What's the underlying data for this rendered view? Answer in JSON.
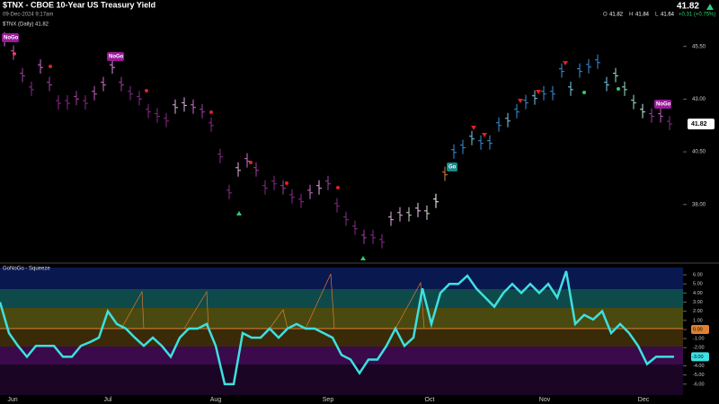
{
  "header": {
    "title": "$TNX - CBOE 10-Year US Treasury Yield",
    "date": "09-Dec-2024 9:17am",
    "last": "41.82",
    "open_label": "O",
    "open": "41.82",
    "high_label": "H",
    "high": "41.84",
    "low_label": "L",
    "low": "41.64",
    "change": "+0.31 (+0.75%)"
  },
  "chart_data": [
    {
      "type": "ohlc",
      "title": "$TNX (Daily) 41.82",
      "values": [
        45.8,
        45.16,
        44.1,
        43.45,
        44.5,
        43.67,
        42.8,
        42.8,
        43.0,
        42.8,
        43.24,
        43.67,
        44.5,
        43.67,
        43.24,
        43.0,
        42.39,
        42.18,
        41.96,
        42.6,
        42.7,
        42.6,
        42.39,
        41.75,
        40.26,
        38.55,
        39.62,
        40.05,
        39.62,
        38.77,
        38.98,
        38.77,
        38.34,
        38.13,
        38.55,
        38.77,
        38.98,
        37.92,
        37.28,
        36.85,
        36.42,
        36.42,
        36.21,
        37.28,
        37.49,
        37.49,
        37.7,
        37.57,
        38.13,
        39.41,
        40.47,
        40.69,
        41.11,
        40.9,
        40.9,
        41.75,
        41.96,
        42.39,
        42.82,
        43.03,
        43.24,
        43.24,
        44.31,
        43.45,
        44.31,
        44.52,
        44.73,
        43.67,
        44.1,
        43.45,
        42.82,
        42.39,
        42.18,
        42.18,
        41.82
      ],
      "bar_colors": [
        "#d070d0",
        "#c060c0",
        "#a040a0",
        "#8a2a8a",
        "#d070d0",
        "#a040a0",
        "#8a2a8a",
        "#8a2a8a",
        "#a040a0",
        "#8a2a8a",
        "#c060c0",
        "#d070d0",
        "#e090e0",
        "#a040a0",
        "#8a2a8a",
        "#8a2a8a",
        "#8a2a8a",
        "#8a2a8a",
        "#8a2a8a",
        "#e0b0e0",
        "#e0b0e0",
        "#d070d0",
        "#a040a0",
        "#8a2a8a",
        "#8a2a8a",
        "#8a2a8a",
        "#e0b0e0",
        "#d070d0",
        "#a040a0",
        "#8a2a8a",
        "#8a2a8a",
        "#a040a0",
        "#8a2a8a",
        "#8a2a8a",
        "#d070d0",
        "#e0b0e0",
        "#a040a0",
        "#8a2a8a",
        "#8a2a8a",
        "#8a2a8a",
        "#a040a0",
        "#8a2a8a",
        "#8a2a8a",
        "#e0b0e0",
        "#e0b0e0",
        "#d0d0d0",
        "#f0d0f0",
        "#e0e0e0",
        "#ffffff",
        "#e08030",
        "#3a8fd8",
        "#3a8fd8",
        "#7ecbe8",
        "#3a8fd8",
        "#3a8fd8",
        "#3a8fd8",
        "#7ecbe8",
        "#3a8fd8",
        "#3a8fd8",
        "#7ecbe8",
        "#3a8fd8",
        "#3a8fd8",
        "#3a8fd8",
        "#7ecbe8",
        "#3a8fd8",
        "#3a8fd8",
        "#3a8fd8",
        "#7ecbe8",
        "#a0e0d0",
        "#a0e0d0",
        "#a0e0d0",
        "#c0f0e0",
        "#a040a0",
        "#c060c0",
        "#8a2a8a"
      ],
      "ylim": [
        35.35,
        46.85
      ],
      "yticks": [
        {
          "value": 38,
          "label": "38.00"
        },
        {
          "value": 40.5,
          "label": "40.50"
        },
        {
          "value": 43,
          "label": "43.00"
        },
        {
          "value": 45.5,
          "label": "45.50"
        }
      ],
      "annotations": [
        "NoGo",
        "NoGo",
        "Go",
        "NoGo"
      ]
    },
    {
      "type": "line",
      "title": "GoNoGo - Squeeze",
      "color": "#3ee0e0",
      "values": [
        3.0,
        -0.4,
        -1.8,
        -3.0,
        -1.8,
        -1.8,
        -1.8,
        -3.0,
        -3.0,
        -1.8,
        -1.4,
        -0.9,
        2.0,
        0.6,
        0.1,
        -0.9,
        -1.8,
        -0.9,
        -1.8,
        -3.0,
        -0.9,
        0.1,
        0.1,
        0.6,
        -1.8,
        -6.0,
        -6.0,
        -0.4,
        -0.9,
        -0.9,
        0.1,
        -0.9,
        0.1,
        0.6,
        0.1,
        0.1,
        -0.4,
        -0.9,
        -2.8,
        -3.3,
        -4.8,
        -3.3,
        -3.3,
        -1.8,
        0.1,
        -1.8,
        -0.9,
        4.5,
        0.6,
        4.0,
        5.0,
        5.0,
        5.9,
        4.5,
        3.5,
        2.5,
        4.0,
        5.0,
        4.0,
        5.0,
        4.0,
        5.0,
        3.5,
        6.4,
        0.6,
        1.6,
        1.1,
        2.0,
        -0.4,
        0.6,
        -0.4,
        -1.8,
        -3.8,
        -3.0,
        -3.0,
        -3.0
      ],
      "ylim": [
        -7.2,
        6.8
      ],
      "yticks": [
        {
          "value": -6,
          "label": "-6.00"
        },
        {
          "value": -5,
          "label": "-5.00"
        },
        {
          "value": -4,
          "label": "-4.00"
        },
        {
          "value": -2,
          "label": "-2.00"
        },
        {
          "value": -1,
          "label": "-1.00"
        },
        {
          "value": 0,
          "label": "0.00"
        },
        {
          "value": 1,
          "label": "1.00"
        },
        {
          "value": 2,
          "label": "2.00"
        },
        {
          "value": 3,
          "label": "3.00"
        },
        {
          "value": 4,
          "label": "4.00"
        },
        {
          "value": 5,
          "label": "5.00"
        },
        {
          "value": 6,
          "label": "6.00"
        }
      ],
      "current": {
        "value": -3,
        "label": "-3.00"
      },
      "x_labels": [
        "Jun",
        "Jul",
        "Aug",
        "Sep",
        "Oct",
        "Nov",
        "Dec"
      ]
    }
  ]
}
